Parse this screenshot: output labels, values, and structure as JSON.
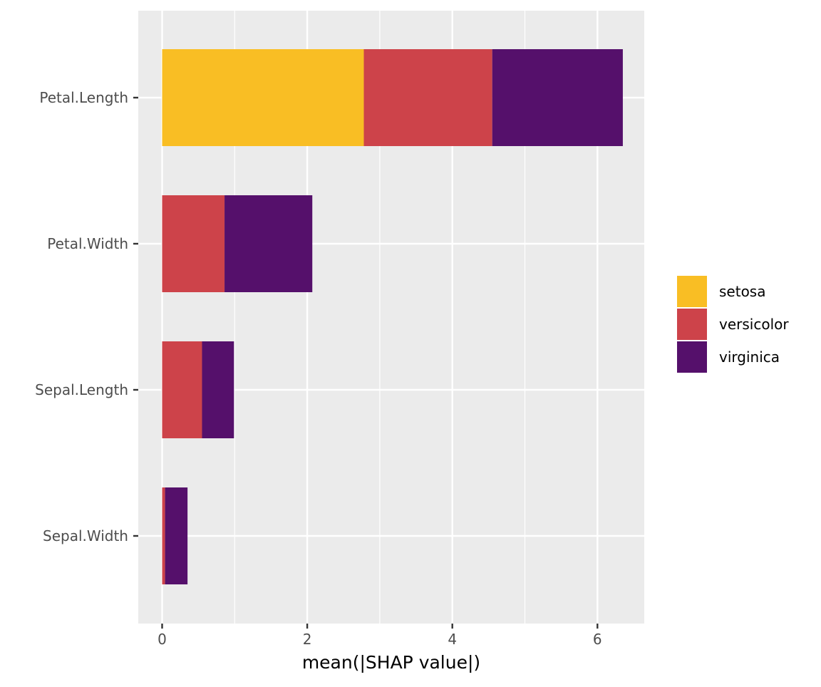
{
  "chart_data": {
    "type": "bar",
    "orientation": "horizontal",
    "stacked": true,
    "title": "",
    "xlabel": "mean(|SHAP value|)",
    "ylabel": "",
    "categories": [
      "Petal.Length",
      "Petal.Width",
      "Sepal.Length",
      "Sepal.Width"
    ],
    "series": [
      {
        "name": "setosa",
        "color": "#F9BE24",
        "values": [
          2.78,
          0.0,
          0.0,
          0.0
        ]
      },
      {
        "name": "versicolor",
        "color": "#CD434A",
        "values": [
          1.77,
          0.86,
          0.55,
          0.04
        ]
      },
      {
        "name": "virginica",
        "color": "#55106B",
        "values": [
          1.8,
          1.21,
          0.44,
          0.31
        ]
      }
    ],
    "xlim": [
      -0.32,
      6.65
    ],
    "xticks": [
      0,
      2,
      4,
      6
    ],
    "grid": true,
    "legend_position": "right",
    "panel_background": "#EBEBEB",
    "grid_color": "#FFFFFF"
  }
}
